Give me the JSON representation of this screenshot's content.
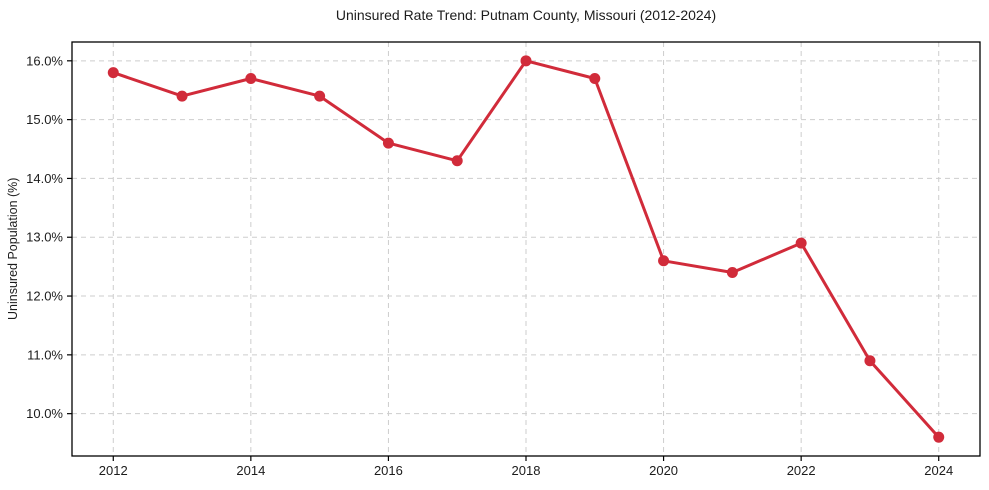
{
  "chart_data": {
    "type": "line",
    "title": "Uninsured Rate Trend: Putnam County, Missouri (2012-2024)",
    "xlabel": "",
    "ylabel": "Uninsured Population (%)",
    "x": [
      2012,
      2013,
      2014,
      2015,
      2016,
      2017,
      2018,
      2019,
      2020,
      2021,
      2022,
      2023,
      2024
    ],
    "series": [
      {
        "name": "Uninsured rate",
        "color": "#d12b3a",
        "marker": "circle",
        "values": [
          15.8,
          15.4,
          15.7,
          15.4,
          14.6,
          14.3,
          16.0,
          15.7,
          12.6,
          12.4,
          12.9,
          10.9,
          9.6
        ]
      }
    ],
    "xticks": [
      2012,
      2014,
      2016,
      2018,
      2020,
      2022,
      2024
    ],
    "yticks": [
      10.0,
      11.0,
      12.0,
      13.0,
      14.0,
      15.0,
      16.0
    ],
    "ytick_suffix": "%",
    "ytick_decimals": 1,
    "xlim": [
      2011.4,
      2024.6
    ],
    "ylim": [
      9.28,
      16.32
    ],
    "grid": true,
    "legend": "none"
  },
  "style": {
    "line_color": "#d12b3a",
    "grid_color": "#cdcdcd",
    "axis_color": "#000000",
    "text_color": "#1c1c1c",
    "background": "#ffffff",
    "line_width": 3,
    "marker_radius": 5.5
  }
}
